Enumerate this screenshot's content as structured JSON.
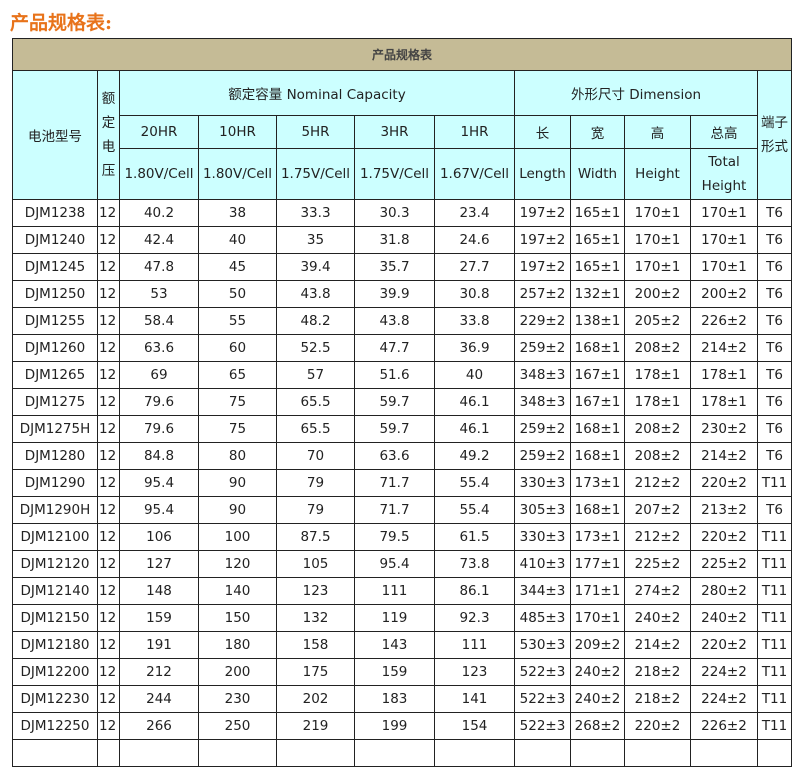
{
  "page_title": "产品规格表:",
  "table": {
    "title": "产品规格表",
    "headers": {
      "model": "电池型号",
      "voltage": "额定电压",
      "capacity_group": "额定容量 Nominal Capacity",
      "dimension_group": "外形尺寸 Dimension",
      "terminal": "端子形式",
      "rates": [
        "20HR",
        "10HR",
        "5HR",
        "3HR",
        "1HR"
      ],
      "cutoffs": [
        "1.80V/Cell",
        "1.80V/Cell",
        "1.75V/Cell",
        "1.75V/Cell",
        "1.67V/Cell"
      ],
      "dims_cn": [
        "长",
        "宽",
        "高",
        "总高"
      ],
      "dims_en": [
        "Length",
        "Width",
        "Height",
        "Total Height"
      ]
    },
    "rows": [
      [
        "DJM1238",
        "12",
        "40.2",
        "38",
        "33.3",
        "30.3",
        "23.4",
        "197±2",
        "165±1",
        "170±1",
        "170±1",
        "T6"
      ],
      [
        "DJM1240",
        "12",
        "42.4",
        "40",
        "35",
        "31.8",
        "24.6",
        "197±2",
        "165±1",
        "170±1",
        "170±1",
        "T6"
      ],
      [
        "DJM1245",
        "12",
        "47.8",
        "45",
        "39.4",
        "35.7",
        "27.7",
        "197±2",
        "165±1",
        "170±1",
        "170±1",
        "T6"
      ],
      [
        "DJM1250",
        "12",
        "53",
        "50",
        "43.8",
        "39.9",
        "30.8",
        "257±2",
        "132±1",
        "200±2",
        "200±2",
        "T6"
      ],
      [
        "DJM1255",
        "12",
        "58.4",
        "55",
        "48.2",
        "43.8",
        "33.8",
        "229±2",
        "138±1",
        "205±2",
        "226±2",
        "T6"
      ],
      [
        "DJM1260",
        "12",
        "63.6",
        "60",
        "52.5",
        "47.7",
        "36.9",
        "259±2",
        "168±1",
        "208±2",
        "214±2",
        "T6"
      ],
      [
        "DJM1265",
        "12",
        "69",
        "65",
        "57",
        "51.6",
        "40",
        "348±3",
        "167±1",
        "178±1",
        "178±1",
        "T6"
      ],
      [
        "DJM1275",
        "12",
        "79.6",
        "75",
        "65.5",
        "59.7",
        "46.1",
        "348±3",
        "167±1",
        "178±1",
        "178±1",
        "T6"
      ],
      [
        "DJM1275H",
        "12",
        "79.6",
        "75",
        "65.5",
        "59.7",
        "46.1",
        "259±2",
        "168±1",
        "208±2",
        "230±2",
        "T6"
      ],
      [
        "DJM1280",
        "12",
        "84.8",
        "80",
        "70",
        "63.6",
        "49.2",
        "259±2",
        "168±1",
        "208±2",
        "214±2",
        "T6"
      ],
      [
        "DJM1290",
        "12",
        "95.4",
        "90",
        "79",
        "71.7",
        "55.4",
        "330±3",
        "173±1",
        "212±2",
        "220±2",
        "T11"
      ],
      [
        "DJM1290H",
        "12",
        "95.4",
        "90",
        "79",
        "71.7",
        "55.4",
        "305±3",
        "168±1",
        "207±2",
        "213±2",
        "T6"
      ],
      [
        "DJM12100",
        "12",
        "106",
        "100",
        "87.5",
        "79.5",
        "61.5",
        "330±3",
        "173±1",
        "212±2",
        "220±2",
        "T11"
      ],
      [
        "DJM12120",
        "12",
        "127",
        "120",
        "105",
        "95.4",
        "73.8",
        "410±3",
        "177±1",
        "225±2",
        "225±2",
        "T11"
      ],
      [
        "DJM12140",
        "12",
        "148",
        "140",
        "123",
        "111",
        "86.1",
        "344±3",
        "171±1",
        "274±2",
        "280±2",
        "T11"
      ],
      [
        "DJM12150",
        "12",
        "159",
        "150",
        "132",
        "119",
        "92.3",
        "485±3",
        "170±1",
        "240±2",
        "240±2",
        "T11"
      ],
      [
        "DJM12180",
        "12",
        "191",
        "180",
        "158",
        "143",
        "111",
        "530±3",
        "209±2",
        "214±2",
        "220±2",
        "T11"
      ],
      [
        "DJM12200",
        "12",
        "212",
        "200",
        "175",
        "159",
        "123",
        "522±3",
        "240±2",
        "218±2",
        "224±2",
        "T11"
      ],
      [
        "DJM12230",
        "12",
        "244",
        "230",
        "202",
        "183",
        "141",
        "522±3",
        "240±2",
        "218±2",
        "224±2",
        "T11"
      ],
      [
        "DJM12250",
        "12",
        "266",
        "250",
        "219",
        "199",
        "154",
        "522±3",
        "268±2",
        "220±2",
        "226±2",
        "T11"
      ]
    ]
  },
  "colors": {
    "title_bar": "#c5bb96",
    "header_bg": "#ccffff",
    "page_title": "#e8731a"
  }
}
